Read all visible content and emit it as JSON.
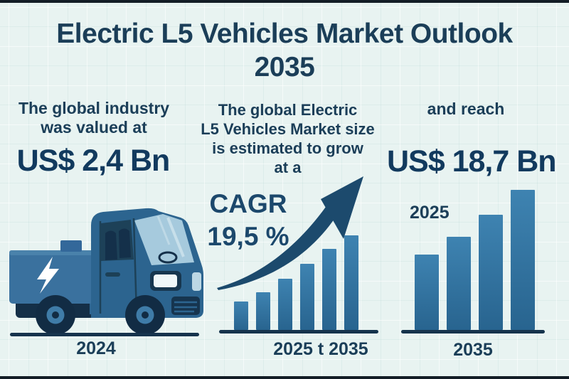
{
  "title": {
    "line1": "Electric L5 Vehicles Market Outlook",
    "line2": "2035"
  },
  "left": {
    "intro1": "The global industry",
    "intro2": "was valued at",
    "value": "US$ 2,4 Bn",
    "year": "2024",
    "illustration": "electric-truck-with-lightning-bolt-icon"
  },
  "middle": {
    "intro1": "The global Electric",
    "intro2": "L5 Vehicles Market size",
    "intro3": "is estimated to grow",
    "intro4": "at a",
    "cagr_label": "CAGR",
    "cagr_value": "19,5 %",
    "period": "2025 t 2035"
  },
  "right": {
    "intro": "and reach",
    "value": "US$ 18,7 Bn",
    "start_year": "2025",
    "end_year": "2035"
  },
  "colors": {
    "background": "#e8f3f1",
    "navy_text": "#1b3e58",
    "bar_blue_top": "#3e83b1",
    "bar_blue_bottom": "#28648f",
    "baseline_dark": "#15334c",
    "arrow_navy": "#1c4a6d",
    "bolt_white": "#ffffff"
  },
  "chart_data": [
    {
      "type": "bar",
      "title": "Illustrative market growth 2025 t 2035 (no numeric axis shown)",
      "categories": [
        "1",
        "2",
        "3",
        "4",
        "5",
        "6"
      ],
      "values": [
        40,
        53,
        72,
        93,
        114,
        133
      ],
      "value_unit": "relative bar height (px), unlabeled axis",
      "xlabel": "2025 t 2035",
      "ylabel": "",
      "grid": false,
      "annotations": [
        "CAGR 19,5 %",
        "upward curved growth arrow over bars"
      ]
    },
    {
      "type": "bar",
      "title": "Illustrative market size growth from 2025 to 2035 (no numeric axis shown)",
      "categories": [
        "1",
        "2",
        "3",
        "4"
      ],
      "values": [
        106,
        131,
        162,
        197
      ],
      "value_unit": "relative bar height (px), unlabeled axis",
      "xlabel": "2035",
      "ylabel": "",
      "grid": false,
      "annotations": [
        "2025 label at upper left of chart",
        "implied values: US$ 2,4 Bn (2024) to US$ 18,7 Bn (2035)"
      ]
    }
  ]
}
